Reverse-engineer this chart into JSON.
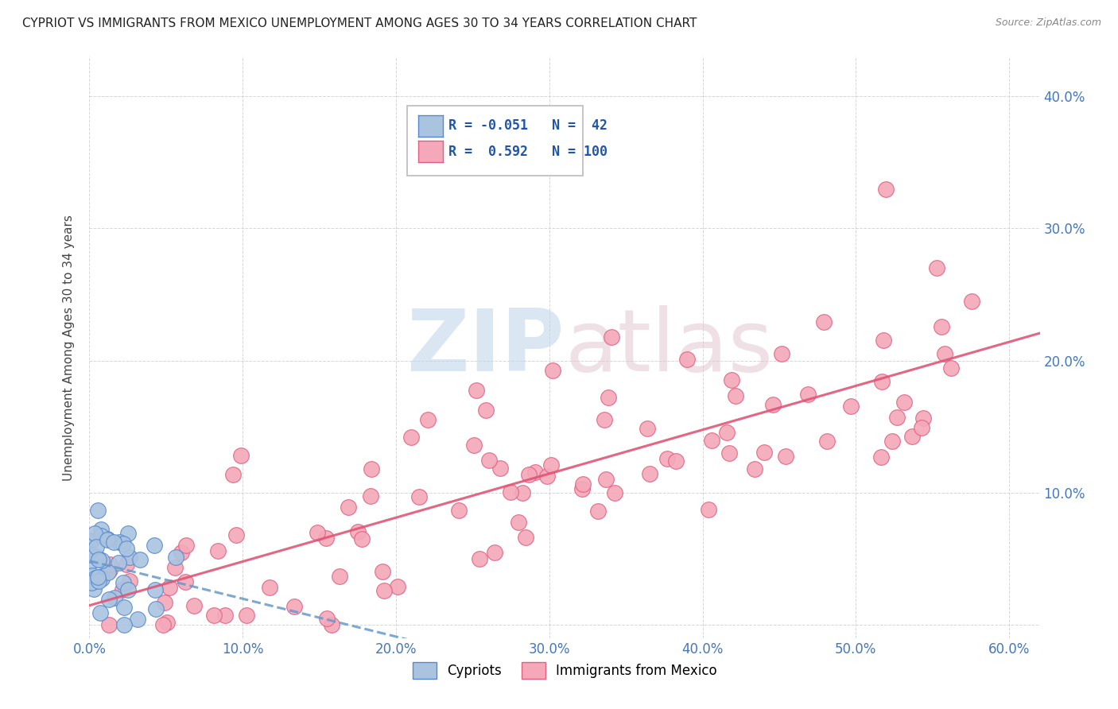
{
  "title": "CYPRIOT VS IMMIGRANTS FROM MEXICO UNEMPLOYMENT AMONG AGES 30 TO 34 YEARS CORRELATION CHART",
  "source": "Source: ZipAtlas.com",
  "ylabel": "Unemployment Among Ages 30 to 34 years",
  "xlim": [
    0.0,
    0.62
  ],
  "ylim": [
    -0.01,
    0.43
  ],
  "xticks": [
    0.0,
    0.1,
    0.2,
    0.3,
    0.4,
    0.5,
    0.6
  ],
  "xticklabels": [
    "0.0%",
    "10.0%",
    "20.0%",
    "30.0%",
    "40.0%",
    "50.0%",
    "60.0%"
  ],
  "yticks_left": [
    0.0,
    0.1,
    0.2,
    0.3,
    0.4
  ],
  "yticklabels_left": [
    "",
    "",
    "",
    "",
    ""
  ],
  "yticks_right": [
    0.1,
    0.2,
    0.3,
    0.4
  ],
  "yticklabels_right": [
    "10.0%",
    "20.0%",
    "30.0%",
    "40.0%"
  ],
  "cypriot_color": "#aac4e0",
  "mexico_color": "#f4a8ba",
  "cypriot_edge": "#5588cc",
  "mexico_edge": "#e06080",
  "trend_blue_color": "#6699cc",
  "trend_pink_color": "#e05575",
  "background_color": "#ffffff",
  "grid_color": "#cccccc",
  "tick_color": "#4477bb",
  "title_color": "#222222",
  "source_color": "#888888",
  "legend_text_color": "#2255aa",
  "legend_r_values": [
    "R = -0.051",
    "R =  0.592"
  ],
  "legend_n_values": [
    "N =  42",
    "N = 100"
  ],
  "legend_colors": [
    "#aac4e0",
    "#f4a8ba"
  ],
  "legend_edge_colors": [
    "#5588cc",
    "#e06080"
  ],
  "bottom_legend_labels": [
    "Cypriots",
    "Immigrants from Mexico"
  ]
}
